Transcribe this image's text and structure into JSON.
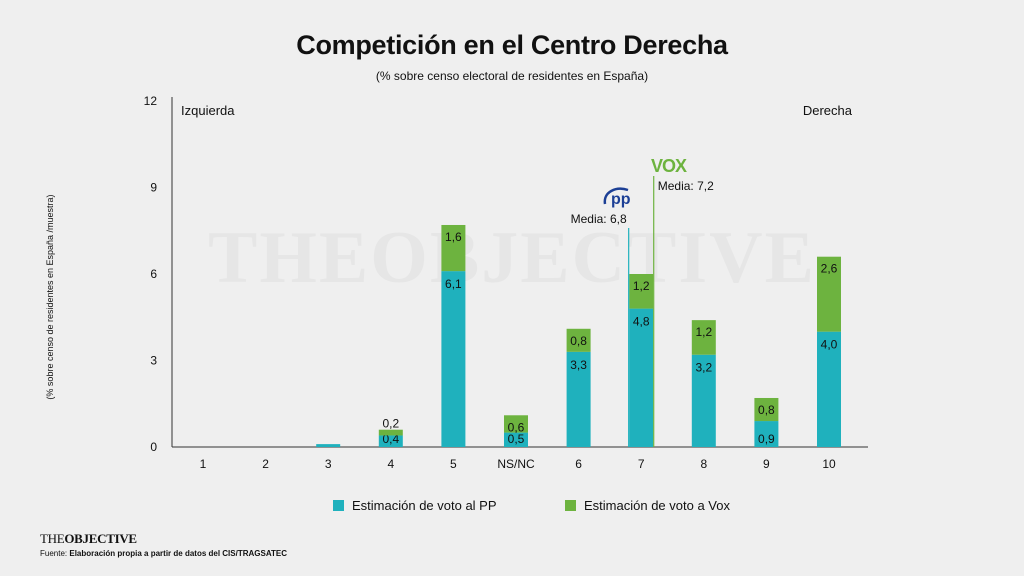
{
  "title": "Competición en el Centro Derecha",
  "subtitle": "(% sobre censo electoral de residentes en España)",
  "ylabel": "(% sobre censo de residentes en España /muestra)",
  "watermark": "THEOBJECTIVE",
  "colors": {
    "pp": "#1fb1bd",
    "vox": "#6db33f",
    "background": "#efefef",
    "axis": "#333333"
  },
  "annotations": {
    "left": "Izquierda",
    "right": "Derecha",
    "pp_mean_label": "Media: 6,8",
    "vox_mean_label": "Media: 7,2",
    "pp_logo_text": "pp",
    "vox_logo_text": "VOX"
  },
  "legend": {
    "pp": "Estimación de voto al PP",
    "vox": "Estimación de voto a Vox"
  },
  "brand": {
    "part1": "THE",
    "part2": "OBJECTIVE"
  },
  "source": {
    "prefix": "Fuente: ",
    "text": "Elaboración propia a partir de datos del CIS/TRAGSATEC"
  },
  "chart_data": {
    "type": "bar",
    "stacked": true,
    "categories": [
      "1",
      "2",
      "3",
      "4",
      "5",
      "NS/NC",
      "6",
      "7",
      "8",
      "9",
      "10"
    ],
    "series": [
      {
        "name": "Estimación de voto al PP",
        "values": [
          0,
          0,
          0.1,
          0.4,
          6.1,
          0.5,
          3.3,
          4.8,
          3.2,
          0.9,
          4.0
        ],
        "labels": [
          "",
          "",
          "",
          "0,4",
          "6,1",
          "0,5",
          "3,3",
          "4,8",
          "3,2",
          "0,9",
          "4,0"
        ]
      },
      {
        "name": "Estimación de voto a Vox",
        "values": [
          0,
          0,
          0,
          0.2,
          1.6,
          0.6,
          0.8,
          1.2,
          1.2,
          0.8,
          2.6
        ],
        "labels": [
          "",
          "",
          "",
          "0,2",
          "1,6",
          "0,6",
          "0,8",
          "1,2",
          "1,2",
          "0,8",
          "2,6"
        ]
      }
    ],
    "yticks": [
      0,
      3,
      6,
      9,
      12
    ],
    "ylim": [
      0,
      12
    ],
    "means": {
      "pp": 6.8,
      "vox": 7.2
    },
    "grid": false,
    "legend_position": "bottom"
  }
}
